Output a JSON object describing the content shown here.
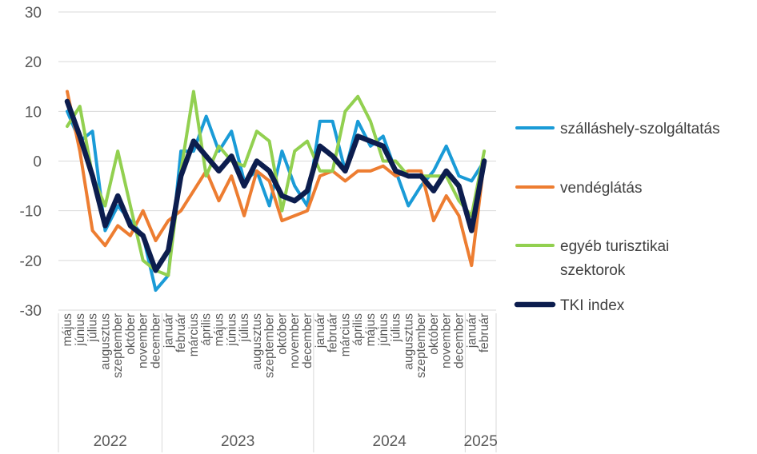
{
  "chart_data": {
    "type": "line",
    "title": "",
    "xlabel": "",
    "ylabel": "",
    "ylim": [
      -30,
      30
    ],
    "yticks": [
      -30,
      -20,
      -10,
      0,
      10,
      20,
      30
    ],
    "grid": true,
    "legend_position": "right",
    "x": [
      "május",
      "június",
      "július",
      "augusztus",
      "szeptember",
      "október",
      "november",
      "december",
      "január",
      "február",
      "március",
      "április",
      "május",
      "június",
      "július",
      "augusztus",
      "szeptember",
      "október",
      "november",
      "december",
      "január",
      "február",
      "március",
      "április",
      "május",
      "június",
      "július",
      "augusztus",
      "szeptember",
      "október",
      "november",
      "december",
      "január",
      "február"
    ],
    "years": [
      {
        "label": "2022",
        "start": 0,
        "end": 7
      },
      {
        "label": "2023",
        "start": 8,
        "end": 19
      },
      {
        "label": "2024",
        "start": 20,
        "end": 31
      },
      {
        "label": "2025",
        "start": 32,
        "end": 33
      }
    ],
    "series": [
      {
        "name": "szálláshely-szolgáltatás",
        "color": "#1a9bd7",
        "width": 4,
        "values": [
          10,
          4,
          6,
          -14,
          -9,
          -12,
          -15,
          -26,
          -23,
          2,
          2,
          9,
          2,
          6,
          -4,
          -2,
          -9,
          2,
          -5,
          -9,
          8,
          8,
          -2,
          8,
          3,
          5,
          -2,
          -9,
          -5,
          -2,
          3,
          -3,
          -4,
          0
        ]
      },
      {
        "name": "vendéglátás",
        "color": "#ed7d31",
        "width": 4,
        "values": [
          14,
          2,
          -14,
          -17,
          -13,
          -15,
          -10,
          -16,
          -12,
          -10,
          -6,
          -2,
          -8,
          -3,
          -11,
          -2,
          -4,
          -12,
          -11,
          -10,
          -3,
          -2,
          -4,
          -2,
          -2,
          -1,
          -3,
          -2,
          -2,
          -12,
          -7,
          -11,
          -21,
          0
        ]
      },
      {
        "name": "egyéb turisztikai szektorok",
        "color": "#92d050",
        "width": 4,
        "values": [
          7,
          11,
          -3,
          -9,
          2,
          -9,
          -20,
          -22,
          -23,
          -2,
          14,
          -3,
          3,
          0,
          -1,
          6,
          4,
          -10,
          2,
          4,
          -2,
          -2,
          10,
          13,
          8,
          0,
          0,
          -3,
          -3,
          -3,
          -3,
          -8,
          -11,
          2
        ]
      },
      {
        "name": "TKI index",
        "color": "#0c1d4e",
        "width": 6.5,
        "values": [
          12,
          5,
          -3,
          -13,
          -7,
          -13,
          -15,
          -22,
          -18,
          -3,
          4,
          1,
          -2,
          1,
          -5,
          0,
          -2,
          -7,
          -8,
          -6,
          3,
          1,
          -2,
          5,
          4,
          3,
          -2,
          -3,
          -3,
          -6,
          -2,
          -5,
          -14,
          0
        ]
      }
    ]
  }
}
